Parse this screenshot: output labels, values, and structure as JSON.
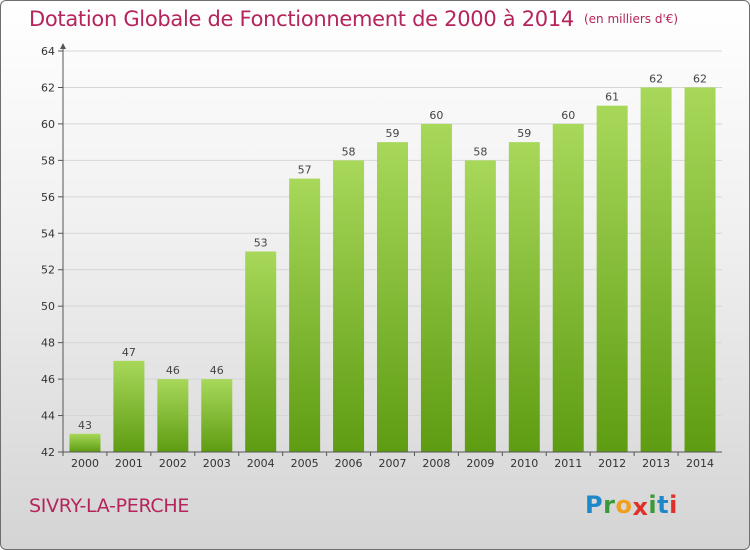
{
  "title": "Dotation Globale de Fonctionnement de 2000 à 2014",
  "unit": "(en milliers d'€)",
  "commune": "SIVRY-LA-PERCHE",
  "logo": {
    "letters": [
      "P",
      "r",
      "o",
      "x",
      "i",
      "t",
      "i"
    ],
    "colors": [
      "#1e88c8",
      "#3a9a3a",
      "#f0a020",
      "#e0302a",
      "#3a9a3a",
      "#1e88c8",
      "#e0302a"
    ]
  },
  "colors": {
    "bar_light": "#a8d85a",
    "bar_dark": "#5e9c12",
    "title": "#b5245c"
  },
  "chart_data": {
    "type": "bar",
    "title": "Dotation Globale de Fonctionnement de 2000 à 2014",
    "categories": [
      "2000",
      "2001",
      "2002",
      "2003",
      "2004",
      "2005",
      "2006",
      "2007",
      "2008",
      "2009",
      "2010",
      "2011",
      "2012",
      "2013",
      "2014"
    ],
    "values": [
      43,
      47,
      46,
      46,
      53,
      57,
      58,
      59,
      60,
      58,
      59,
      60,
      61,
      62,
      62
    ],
    "ylim": [
      42,
      64
    ],
    "yticks": [
      42,
      44,
      46,
      48,
      50,
      52,
      54,
      56,
      58,
      60,
      62,
      64
    ],
    "grid": true
  }
}
